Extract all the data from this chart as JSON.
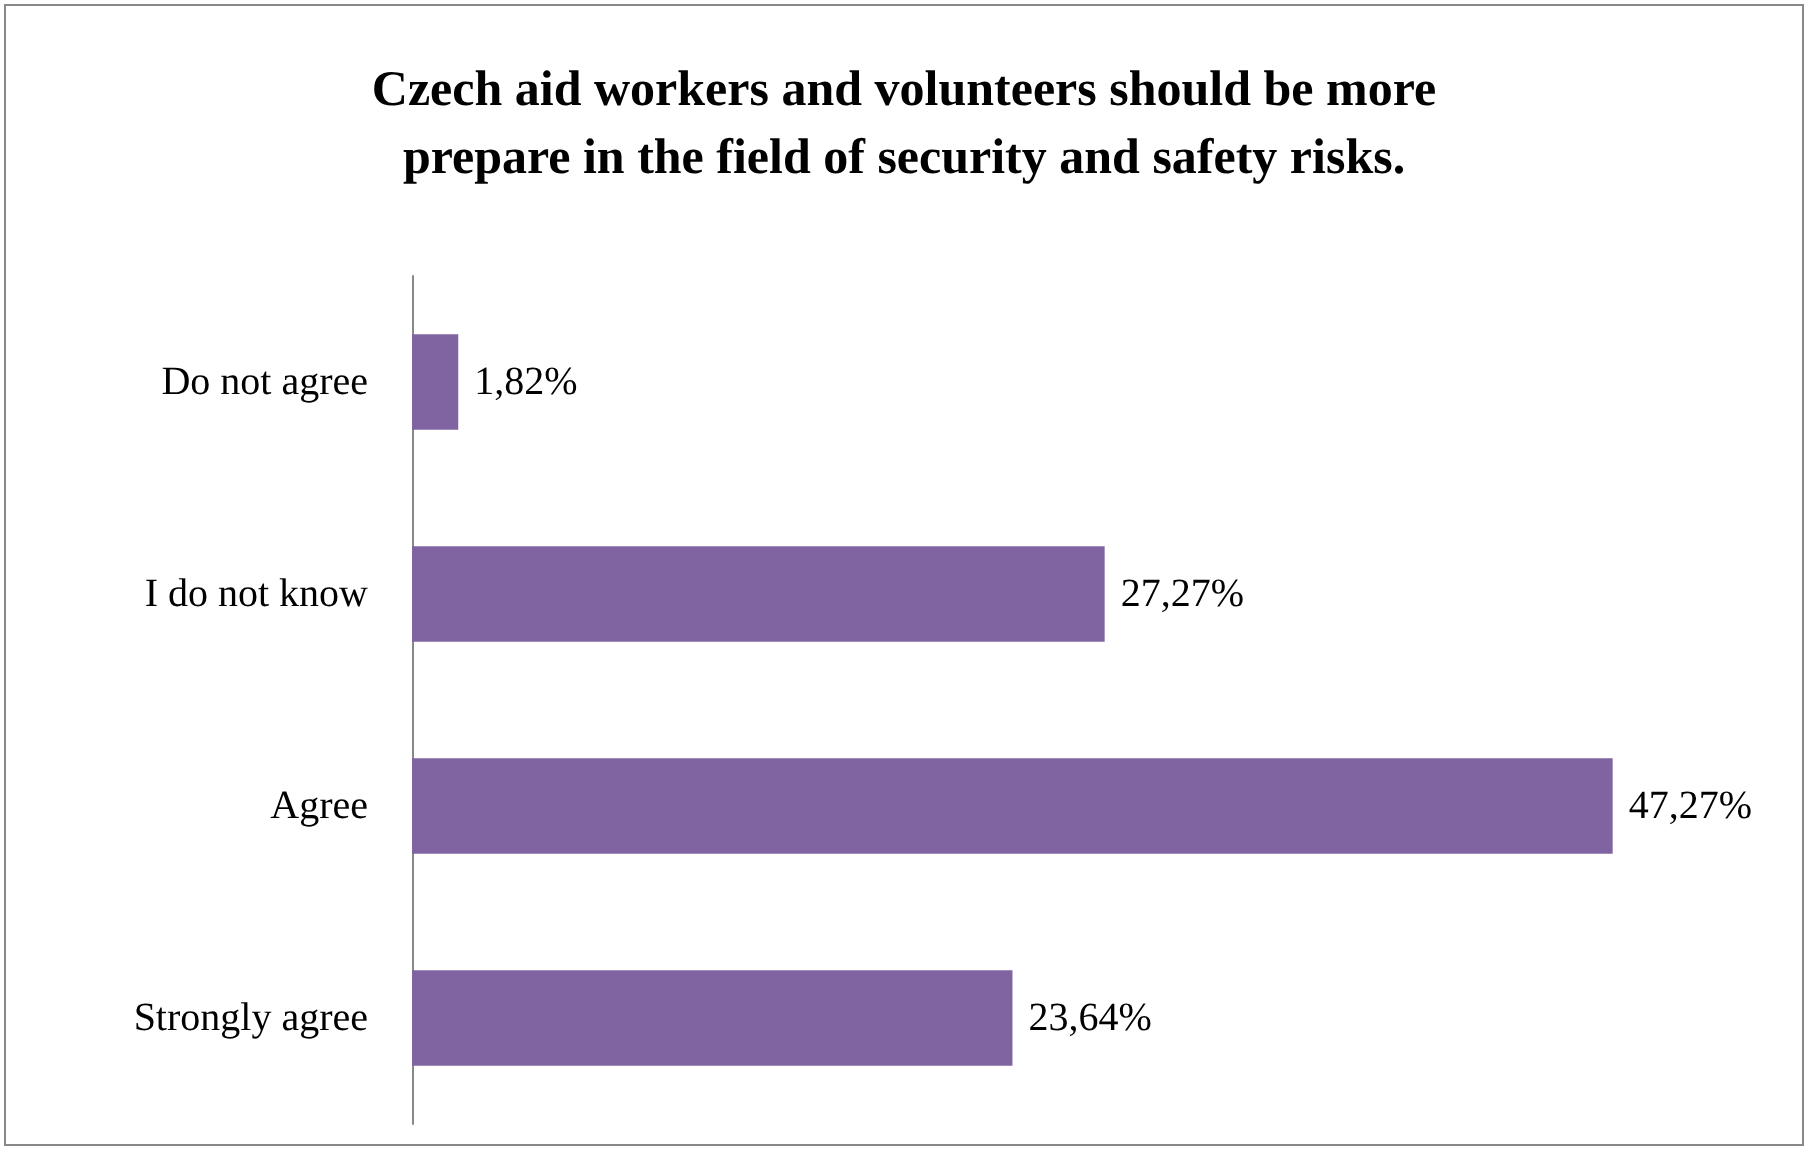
{
  "chart_data": {
    "type": "bar",
    "orientation": "horizontal",
    "title": "Czech aid workers and volunteers should be more\nprepare in the field of security and safety risks.",
    "categories": [
      "Do not agree",
      "I do not know",
      "Agree",
      "Strongly agree"
    ],
    "series": [
      {
        "color": "#8064a2",
        "values": [
          1.82,
          27.27,
          47.27,
          23.64
        ],
        "value_labels": [
          "1,82%",
          "27,27%",
          "47,27%",
          "23,64%"
        ]
      }
    ],
    "grid": false,
    "tick_labels": "y"
  }
}
